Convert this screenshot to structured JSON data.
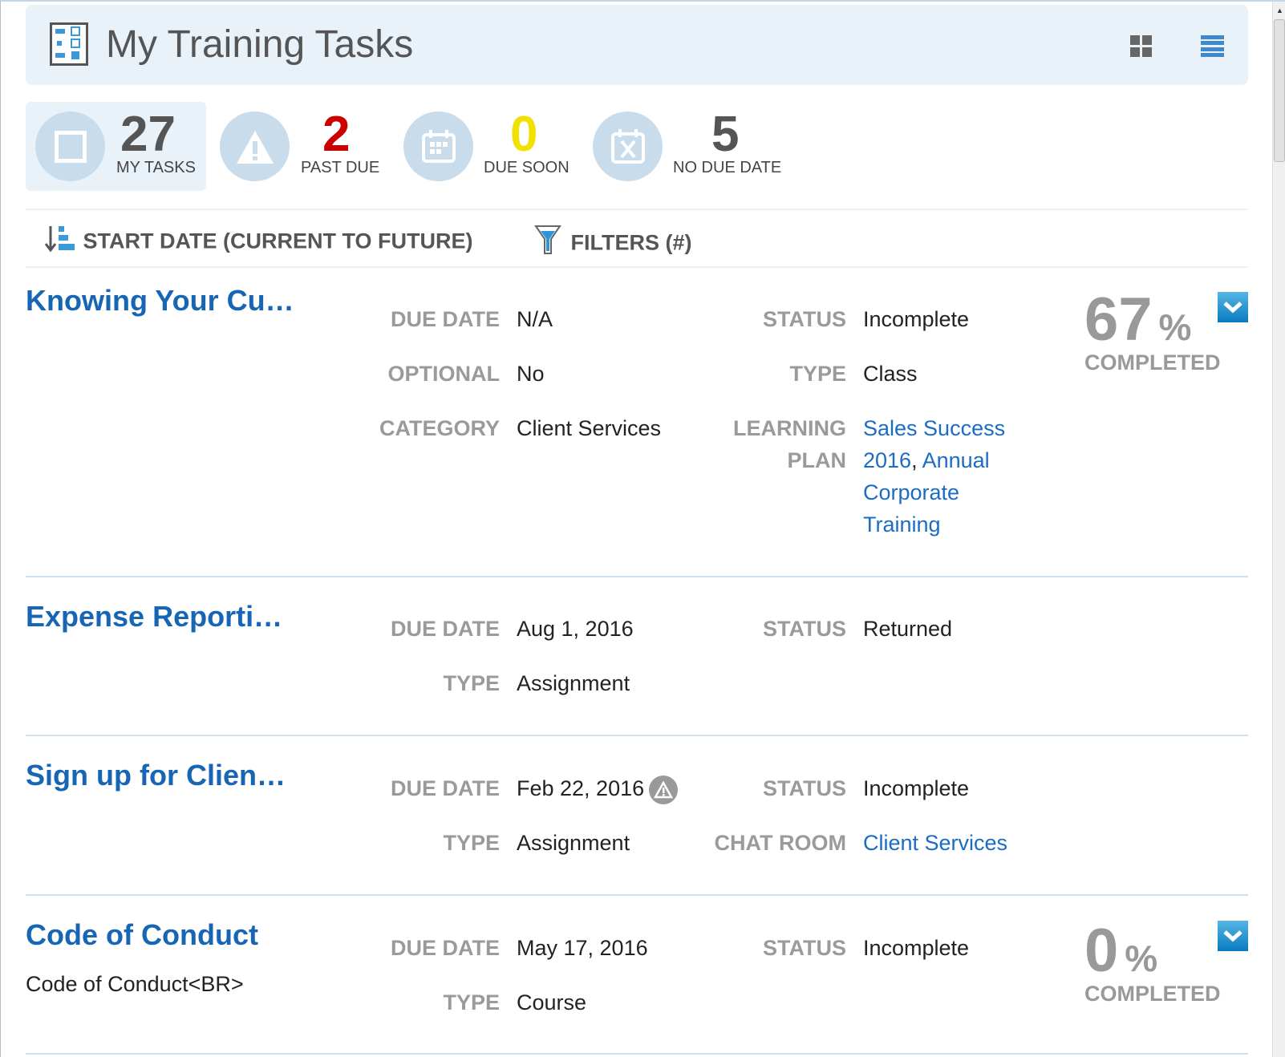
{
  "header": {
    "title": "My Training Tasks",
    "icon": "task-board-icon",
    "grid_view": "grid-view-icon",
    "list_view": "list-view-icon"
  },
  "stats": [
    {
      "value": "27",
      "label": "MY TASKS",
      "color": "#555555",
      "icon": "square-icon"
    },
    {
      "value": "2",
      "label": "PAST DUE",
      "color": "#cc0000",
      "icon": "warning-icon"
    },
    {
      "value": "0",
      "label": "DUE SOON",
      "color": "#f2e000",
      "icon": "calendar-icon"
    },
    {
      "value": "5",
      "label": "NO DUE DATE",
      "color": "#555555",
      "icon": "calendar-x-icon"
    }
  ],
  "toolbar": {
    "sort_label": "START DATE (CURRENT TO FUTURE)",
    "filters_label": "FILTERS (#)"
  },
  "tasks": [
    {
      "title": "Knowing Your Cu…",
      "due_date_label": "DUE DATE",
      "due_date": "N/A",
      "optional_label": "OPTIONAL",
      "optional": "No",
      "category_label": "CATEGORY",
      "category": "Client Services",
      "status_label": "STATUS",
      "status": "Incomplete",
      "type_label": "TYPE",
      "type": "Class",
      "plan_label": "LEARNING PLAN",
      "plan_link1": "Sales Success 2016",
      "plan_sep": ", ",
      "plan_link2": "Annual Corporate Training",
      "percent": "67",
      "percent_sign": "%",
      "completed_label": "COMPLETED"
    },
    {
      "title": "Expense Reporti…",
      "due_date_label": "DUE DATE",
      "due_date": "Aug 1, 2016",
      "status_label": "STATUS",
      "status": "Returned",
      "type_label": "TYPE",
      "type": "Assignment"
    },
    {
      "title": "Sign up for Clien…",
      "due_date_label": "DUE DATE",
      "due_date": "Feb 22, 2016",
      "status_label": "STATUS",
      "status": "Incomplete",
      "type_label": "TYPE",
      "type": "Assignment",
      "chat_label": "CHAT ROOM",
      "chat": "Client Services"
    },
    {
      "title": "Code of Conduct",
      "subtitle": "Code of Conduct<BR>",
      "due_date_label": "DUE DATE",
      "due_date": "May 17, 2016",
      "status_label": "STATUS",
      "status": "Incomplete",
      "type_label": "TYPE",
      "type": "Course",
      "percent": "0",
      "percent_sign": "%",
      "completed_label": "COMPLETED"
    }
  ]
}
